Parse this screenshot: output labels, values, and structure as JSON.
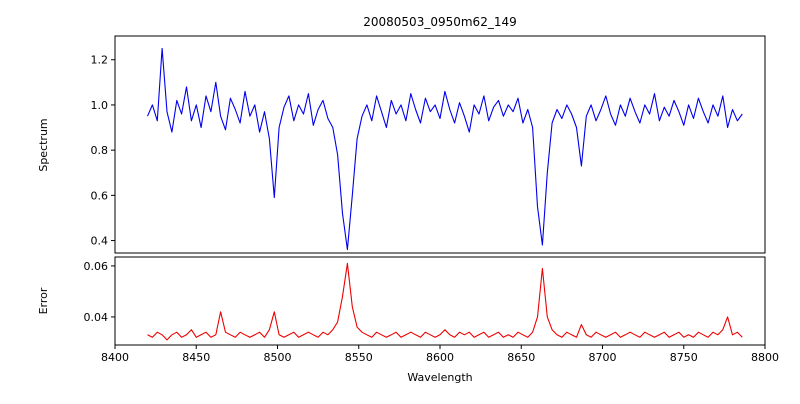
{
  "figure": {
    "title": "20080503_0950m62_149",
    "xlabel": "Wavelength",
    "top_ylabel": "Spectrum",
    "bottom_ylabel": "Error"
  },
  "chart_data": {
    "type": "line",
    "title": "20080503_0950m62_149",
    "xlabel": "Wavelength",
    "xlim": [
      8400,
      8800
    ],
    "xticks": [
      8400,
      8450,
      8500,
      8550,
      8600,
      8650,
      8700,
      8750,
      8800
    ],
    "xtick_labels": [
      "8400",
      "8450",
      "8500",
      "8550",
      "8600",
      "8650",
      "8700",
      "8750",
      "8800"
    ],
    "grid": false,
    "legend": "none",
    "x": [
      8420,
      8423,
      8426,
      8429,
      8432,
      8435,
      8438,
      8441,
      8444,
      8447,
      8450,
      8453,
      8456,
      8459,
      8462,
      8465,
      8468,
      8471,
      8474,
      8477,
      8480,
      8483,
      8486,
      8489,
      8492,
      8495,
      8498,
      8501,
      8504,
      8507,
      8510,
      8513,
      8516,
      8519,
      8522,
      8525,
      8528,
      8531,
      8534,
      8537,
      8540,
      8543,
      8546,
      8549,
      8552,
      8555,
      8558,
      8561,
      8564,
      8567,
      8570,
      8573,
      8576,
      8579,
      8582,
      8585,
      8588,
      8591,
      8594,
      8597,
      8600,
      8603,
      8606,
      8609,
      8612,
      8615,
      8618,
      8621,
      8624,
      8627,
      8630,
      8633,
      8636,
      8639,
      8642,
      8645,
      8648,
      8651,
      8654,
      8657,
      8660,
      8663,
      8666,
      8669,
      8672,
      8675,
      8678,
      8681,
      8684,
      8687,
      8690,
      8693,
      8696,
      8699,
      8702,
      8705,
      8708,
      8711,
      8714,
      8717,
      8720,
      8723,
      8726,
      8729,
      8732,
      8735,
      8738,
      8741,
      8744,
      8747,
      8750,
      8753,
      8756,
      8759,
      8762,
      8765,
      8768,
      8771,
      8774,
      8777,
      8780,
      8783,
      8786
    ],
    "series": [
      {
        "name": "Spectrum",
        "panel": "top",
        "color": "#0000ee",
        "ylim": [
          0.345,
          1.305
        ],
        "yticks": [
          0.4,
          0.6,
          0.8,
          1.0,
          1.2
        ],
        "ytick_labels": [
          "0.4",
          "0.6",
          "0.8",
          "1.0",
          "1.2"
        ],
        "absorption_lines": [
          8498,
          8542,
          8662,
          8688
        ],
        "values": [
          0.95,
          1.0,
          0.93,
          1.25,
          0.97,
          0.88,
          1.02,
          0.96,
          1.08,
          0.93,
          1.0,
          0.9,
          1.04,
          0.97,
          1.1,
          0.95,
          0.89,
          1.03,
          0.98,
          0.92,
          1.06,
          0.95,
          1.0,
          0.88,
          0.97,
          0.85,
          0.59,
          0.9,
          0.99,
          1.04,
          0.93,
          1.0,
          0.96,
          1.05,
          0.91,
          0.98,
          1.02,
          0.94,
          0.9,
          0.78,
          0.52,
          0.36,
          0.6,
          0.85,
          0.95,
          1.0,
          0.93,
          1.04,
          0.97,
          0.9,
          1.02,
          0.96,
          1.0,
          0.93,
          1.05,
          0.98,
          0.92,
          1.03,
          0.97,
          1.0,
          0.94,
          1.06,
          0.98,
          0.92,
          1.01,
          0.95,
          0.88,
          1.0,
          0.96,
          1.04,
          0.93,
          0.99,
          1.02,
          0.95,
          1.0,
          0.97,
          1.03,
          0.92,
          0.98,
          0.9,
          0.55,
          0.38,
          0.7,
          0.92,
          0.98,
          0.94,
          1.0,
          0.96,
          0.9,
          0.73,
          0.95,
          1.0,
          0.93,
          0.98,
          1.04,
          0.96,
          0.91,
          1.0,
          0.95,
          1.03,
          0.97,
          0.92,
          1.0,
          0.96,
          1.05,
          0.93,
          0.99,
          0.95,
          1.02,
          0.97,
          0.91,
          1.0,
          0.94,
          1.03,
          0.97,
          0.92,
          1.0,
          0.95,
          1.04,
          0.9,
          0.98,
          0.93,
          0.96
        ]
      },
      {
        "name": "Error",
        "panel": "bottom",
        "color": "#ee0000",
        "ylim": [
          0.029,
          0.0635
        ],
        "yticks": [
          0.04,
          0.06
        ],
        "ytick_labels": [
          "0.04",
          "0.06"
        ],
        "values": [
          0.033,
          0.032,
          0.034,
          0.033,
          0.031,
          0.033,
          0.034,
          0.032,
          0.033,
          0.035,
          0.032,
          0.033,
          0.034,
          0.032,
          0.033,
          0.042,
          0.034,
          0.033,
          0.032,
          0.034,
          0.033,
          0.032,
          0.033,
          0.034,
          0.032,
          0.035,
          0.042,
          0.033,
          0.032,
          0.033,
          0.034,
          0.032,
          0.033,
          0.034,
          0.033,
          0.032,
          0.034,
          0.033,
          0.035,
          0.038,
          0.048,
          0.061,
          0.044,
          0.036,
          0.034,
          0.033,
          0.032,
          0.034,
          0.033,
          0.032,
          0.033,
          0.034,
          0.032,
          0.033,
          0.034,
          0.033,
          0.032,
          0.034,
          0.033,
          0.032,
          0.033,
          0.035,
          0.033,
          0.032,
          0.034,
          0.033,
          0.034,
          0.032,
          0.033,
          0.034,
          0.032,
          0.033,
          0.034,
          0.032,
          0.033,
          0.032,
          0.034,
          0.033,
          0.032,
          0.034,
          0.04,
          0.059,
          0.04,
          0.035,
          0.033,
          0.032,
          0.034,
          0.033,
          0.032,
          0.037,
          0.033,
          0.032,
          0.034,
          0.033,
          0.032,
          0.033,
          0.034,
          0.032,
          0.033,
          0.034,
          0.033,
          0.032,
          0.034,
          0.033,
          0.032,
          0.033,
          0.034,
          0.032,
          0.033,
          0.034,
          0.032,
          0.033,
          0.032,
          0.034,
          0.033,
          0.032,
          0.034,
          0.033,
          0.035,
          0.04,
          0.033,
          0.034,
          0.032
        ]
      }
    ]
  }
}
